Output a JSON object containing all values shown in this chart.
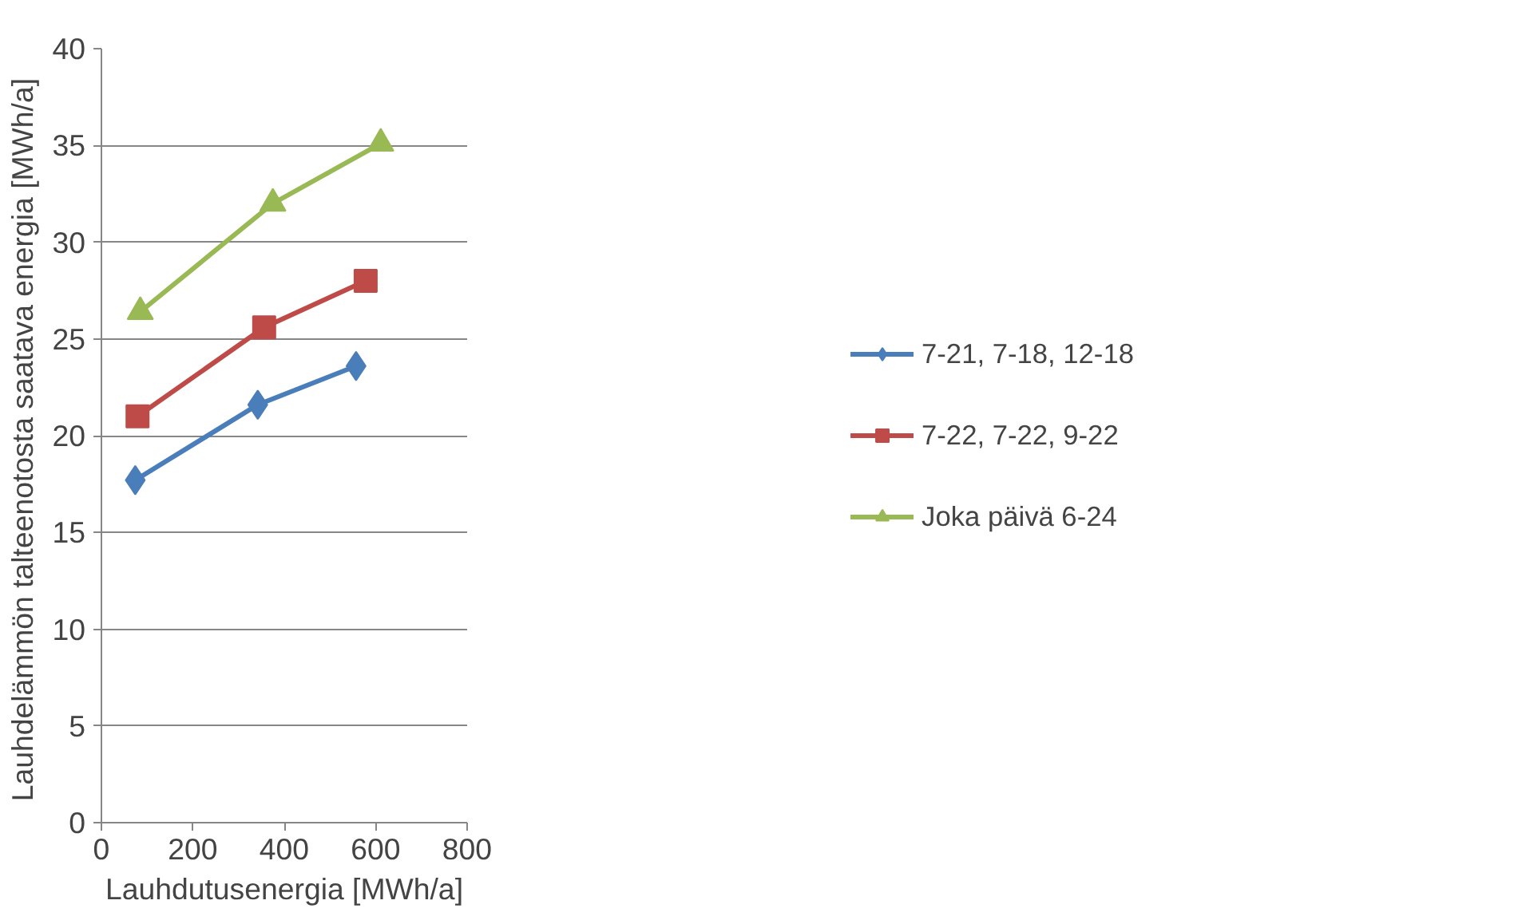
{
  "chart_data": {
    "type": "line",
    "xlabel": "Lauhdutusenergia [MWh/a]",
    "ylabel": "Lauhdelämmön talteenotosta  saatava energia [MWh/a]",
    "xlim": [
      0,
      800
    ],
    "xticks": [
      0,
      200,
      400,
      600,
      800
    ],
    "ylim": [
      0,
      40
    ],
    "yticks": [
      0,
      5,
      10,
      15,
      20,
      25,
      30,
      35,
      40
    ],
    "grid": "y",
    "legend": "right",
    "line_style": "solid",
    "series": [
      {
        "name": "7-21, 7-18, 12-18",
        "color": "#4a7ebb",
        "marker": "diamond",
        "x": [
          74,
          342,
          557
        ],
        "values": [
          17.7,
          21.6,
          23.6
        ]
      },
      {
        "name": "7-22, 7-22, 9-22",
        "color": "#be4b48",
        "marker": "square",
        "x": [
          79,
          356,
          578
        ],
        "values": [
          21.0,
          25.6,
          28.0
        ]
      },
      {
        "name": "Joka päivä 6-24",
        "color": "#98b954",
        "marker": "triangle",
        "x": [
          85,
          375,
          611
        ],
        "values": [
          26.4,
          32.0,
          35.1
        ]
      }
    ]
  }
}
